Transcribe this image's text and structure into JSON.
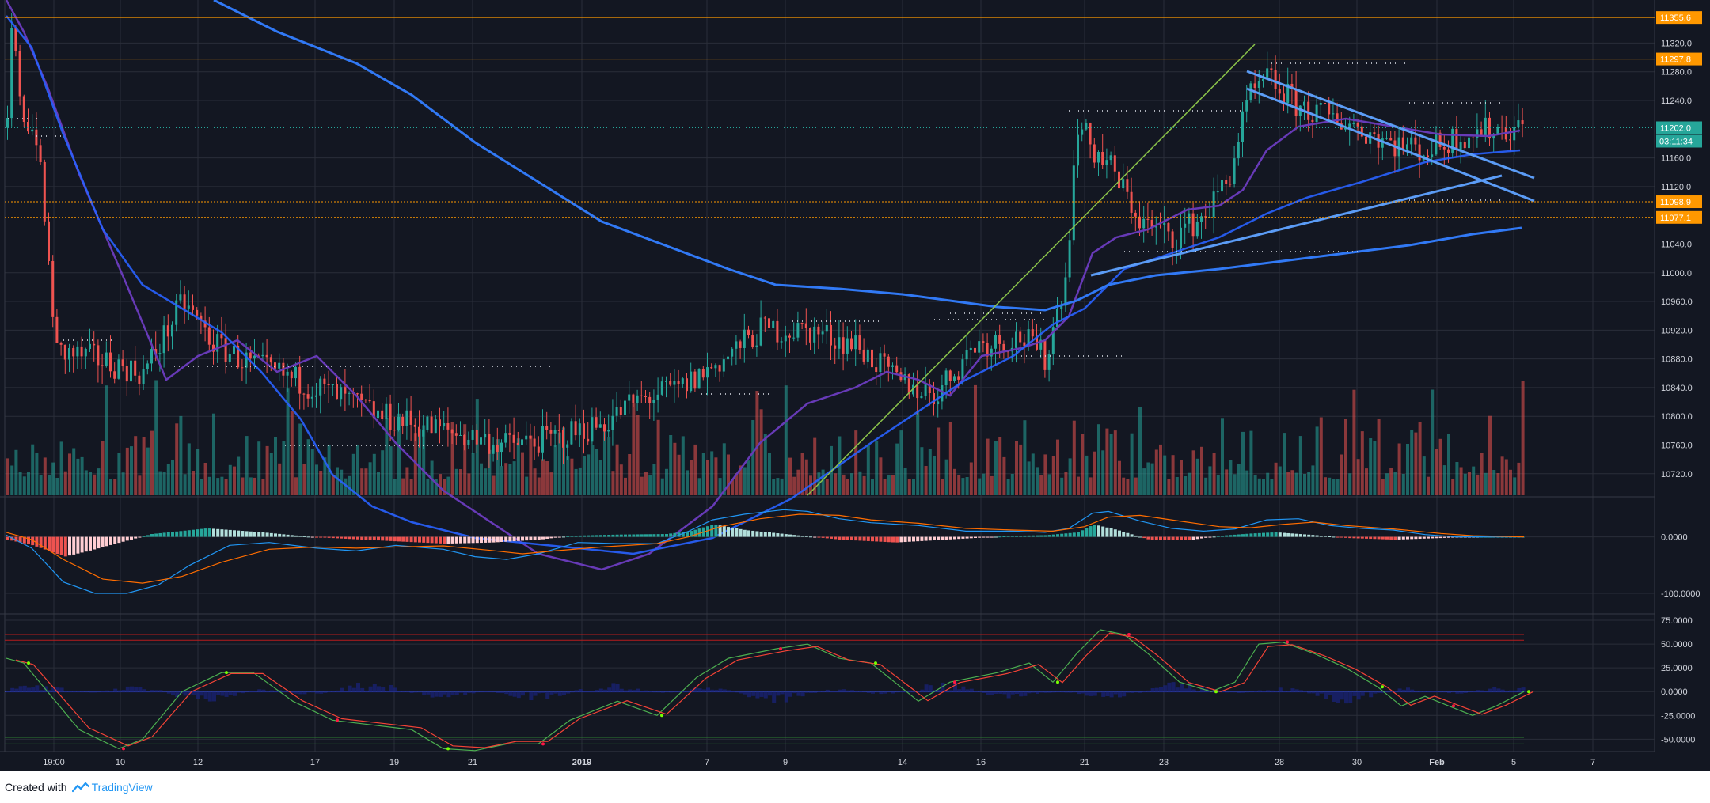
{
  "footer": {
    "created_with": "Created with",
    "brand": "TradingView"
  },
  "colors": {
    "background": "#131722",
    "grid": "#2a2e39",
    "axis_text": "#d1d4dc",
    "up_volume": "#26a69a",
    "down_volume": "#ef5350",
    "ma_fast": "#673ab7",
    "ma_slow": "#2962ff",
    "ma_long": "#3179f5",
    "trendline": "#5b9cf6",
    "diagonal": "#8bc34a",
    "orange_level": "#ff9800",
    "price_badge": "#26a69a",
    "macd_line": "#2196f3",
    "signal_line": "#ff6d00",
    "stoch_k": "#4caf50",
    "stoch_d": "#f44336"
  },
  "chart_data": [
    {
      "type": "candlestick",
      "title": "",
      "ylabel": "",
      "ylim": [
        10690,
        11380
      ],
      "y_ticks": [
        "11320.0",
        "11280.0",
        "11240.0",
        "11160.0",
        "11120.0",
        "11040.0",
        "11000.0",
        "10960.0",
        "10920.0",
        "10880.0",
        "10840.0",
        "10800.0",
        "10760.0",
        "10720.0"
      ],
      "y_tick_values": [
        11320,
        11280,
        11240,
        11160,
        11120,
        11040,
        11000,
        10960,
        10920,
        10880,
        10840,
        10800,
        10760,
        10720
      ],
      "x_labels": [
        "19:00",
        "10",
        "12",
        "17",
        "19",
        "21",
        "2019",
        "7",
        "9",
        "14",
        "16",
        "21",
        "23",
        "28",
        "30",
        "Feb",
        "5",
        "7"
      ],
      "grid": true,
      "price_levels": [
        {
          "label": "11355.6",
          "value": 11355.6,
          "style": "solid",
          "color": "#ff9800"
        },
        {
          "label": "11297.8",
          "value": 11297.8,
          "style": "solid",
          "color": "#ff9800"
        },
        {
          "label": "11098.9",
          "value": 11098.9,
          "style": "dotted",
          "color": "#ff9800"
        },
        {
          "label": "11077.1",
          "value": 11077.1,
          "style": "dotted",
          "color": "#ff9800"
        }
      ],
      "last_price": {
        "label": "11202.0",
        "value": 11202.0
      },
      "countdown": "03:11:34"
    },
    {
      "type": "bar",
      "name": "MACD",
      "y_ticks": [
        "0.0000",
        "-100.0000"
      ],
      "y_tick_values": [
        0,
        -100
      ],
      "ylim": [
        -135,
        68
      ]
    },
    {
      "type": "line",
      "name": "Stochastic RSI",
      "y_ticks": [
        "75.0000",
        "50.0000",
        "25.0000",
        "0.0000",
        "-25.0000",
        "-50.0000"
      ],
      "y_tick_values": [
        75,
        50,
        25,
        0,
        -25,
        -50
      ],
      "ylim": [
        -63,
        80
      ],
      "bands": [
        60,
        54,
        -48,
        -55
      ]
    }
  ]
}
